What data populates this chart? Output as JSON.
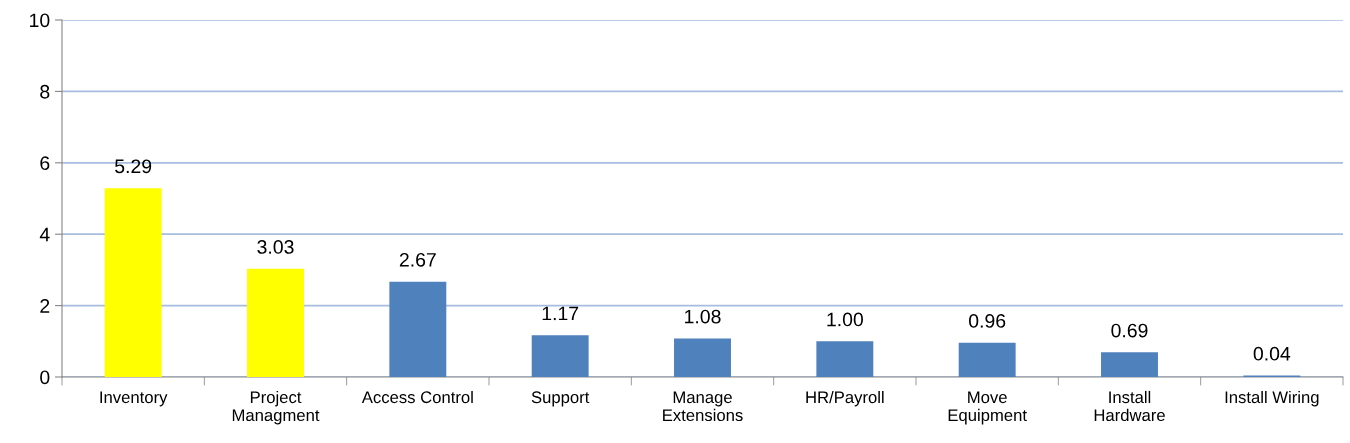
{
  "chart_data": {
    "type": "bar",
    "categories": [
      "Inventory",
      "Project\nManagment",
      "Access Control",
      "Support",
      "Manage\nExtensions",
      "HR/Payroll",
      "Move\nEquipment",
      "Install\nHardware",
      "Install Wiring"
    ],
    "values": [
      5.29,
      3.03,
      2.67,
      1.17,
      1.08,
      1.0,
      0.96,
      0.69,
      0.04
    ],
    "value_labels": [
      "5.29",
      "3.03",
      "2.67",
      "1.17",
      "1.08",
      "1.00",
      "0.96",
      "0.69",
      "0.04"
    ],
    "colors": [
      "#ffff00",
      "#ffff00",
      "#4f81bd",
      "#4f81bd",
      "#4f81bd",
      "#4f81bd",
      "#4f81bd",
      "#4f81bd",
      "#4f81bd"
    ],
    "ylim": [
      0,
      10
    ],
    "yticks": [
      0,
      2,
      4,
      6,
      8,
      10
    ],
    "grid": "y"
  }
}
